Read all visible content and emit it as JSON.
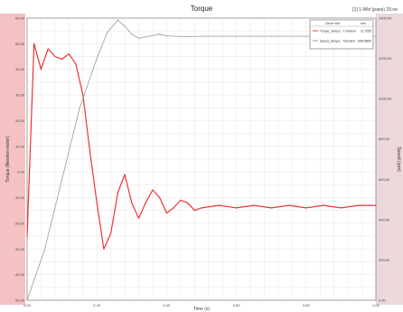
{
  "chart_data": {
    "type": "line",
    "title": "Torque",
    "window_label": "[1] 1-Wkt (pane) 29.ne",
    "xlabel": "Time (s)",
    "ylabel_left": "Torque (Newton-meter)",
    "ylabel_right": "Speed (rpm)",
    "x_ticks": [
      "0.00",
      "0.20",
      "0.40",
      "0.60",
      "0.80",
      "1.00"
    ],
    "y_left_ticks": [
      "-50.00",
      "-40.00",
      "-30.00",
      "-20.00",
      "-10.00",
      "0.00",
      "10.00",
      "20.00",
      "30.00",
      "40.00",
      "50.00",
      "60.00"
    ],
    "y_right_ticks": [
      "0.00",
      "200.00",
      "400.00",
      "600.00",
      "800.00",
      "1000.00",
      "1200.00",
      "1400.00"
    ],
    "xlim": [
      0,
      1.0
    ],
    "ylim_left": [
      -50,
      60
    ],
    "ylim_right": [
      0,
      1400
    ],
    "grid": true,
    "legend": {
      "placement": "top-right",
      "header": [
        "Curve Info",
        "rms"
      ],
      "entries": [
        {
          "name": "Torque_Setup1 : Transient",
          "value": "11.7055"
        },
        {
          "name": "Speed_Setup1 : Transient",
          "value": "1069.8860"
        }
      ]
    },
    "series": [
      {
        "name": "Torque_Setup1 : Transient",
        "axis": "left",
        "color": "#ee3333",
        "x": [
          0.0,
          0.02,
          0.04,
          0.06,
          0.08,
          0.1,
          0.12,
          0.14,
          0.16,
          0.18,
          0.2,
          0.22,
          0.24,
          0.26,
          0.28,
          0.3,
          0.32,
          0.34,
          0.36,
          0.38,
          0.4,
          0.42,
          0.44,
          0.46,
          0.48,
          0.5,
          0.55,
          0.6,
          0.65,
          0.7,
          0.75,
          0.8,
          0.85,
          0.9,
          0.95,
          1.0
        ],
        "y": [
          -25,
          50,
          40,
          48,
          45,
          44,
          46,
          42,
          30,
          8,
          -12,
          -30,
          -24,
          -8,
          -1,
          -12,
          -18,
          -12,
          -7,
          -10,
          -16,
          -14,
          -11,
          -12,
          -15,
          -14,
          -13,
          -14,
          -13,
          -14,
          -13,
          -14,
          -13,
          -14,
          -13,
          -13
        ]
      },
      {
        "name": "Speed_Setup1 : Transient",
        "axis": "right",
        "color": "#999999",
        "x": [
          0.0,
          0.05,
          0.1,
          0.15,
          0.2,
          0.23,
          0.26,
          0.28,
          0.3,
          0.32,
          0.35,
          0.38,
          0.4,
          0.45,
          0.5,
          0.6,
          0.7,
          0.8,
          0.9,
          1.0
        ],
        "y": [
          0,
          250,
          600,
          950,
          1200,
          1330,
          1390,
          1360,
          1320,
          1300,
          1310,
          1320,
          1312,
          1308,
          1310,
          1310,
          1310,
          1310,
          1310,
          1310
        ]
      }
    ]
  }
}
